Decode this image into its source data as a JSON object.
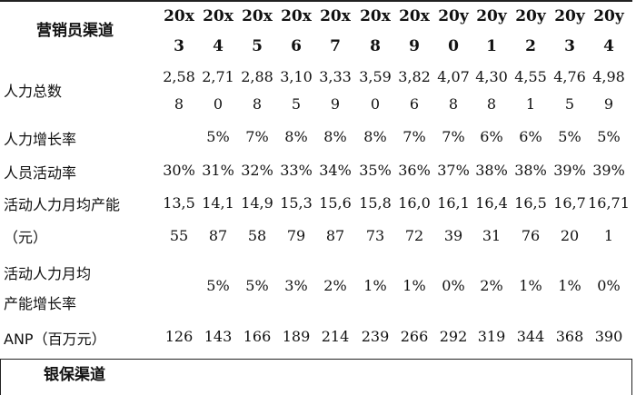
{
  "table": {
    "corner_label": "营销员渠道",
    "years_top": [
      "20x",
      "20x",
      "20x",
      "20x",
      "20x",
      "20x",
      "20x",
      "20y",
      "20y",
      "20y",
      "20y",
      "20y"
    ],
    "years_bottom": [
      "3",
      "4",
      "5",
      "6",
      "7",
      "8",
      "9",
      "0",
      "1",
      "2",
      "3",
      "4"
    ],
    "rows": [
      {
        "label_lines": [
          "人力总数"
        ],
        "top": [
          "2,58",
          "2,71",
          "2,88",
          "3,10",
          "3,33",
          "3,59",
          "3,82",
          "4,07",
          "4,30",
          "4,55",
          "4,76",
          "4,98"
        ],
        "bottom": [
          "8",
          "0",
          "8",
          "5",
          "9",
          "0",
          "6",
          "8",
          "8",
          "1",
          "5",
          "9"
        ]
      },
      {
        "label_lines": [
          "人力增长率"
        ],
        "values": [
          "",
          "5%",
          "7%",
          "8%",
          "8%",
          "8%",
          "7%",
          "7%",
          "6%",
          "6%",
          "5%",
          "5%"
        ]
      },
      {
        "label_lines": [
          "人员活动率"
        ],
        "values": [
          "30%",
          "31%",
          "32%",
          "33%",
          "34%",
          "35%",
          "36%",
          "37%",
          "38%",
          "38%",
          "39%",
          "39%"
        ]
      },
      {
        "label_lines": [
          "活动人力月均产能",
          "（元）"
        ],
        "top": [
          "13,5",
          "14,1",
          "14,9",
          "15,3",
          "15,6",
          "15,8",
          "16,0",
          "16,1",
          "16,4",
          "16,5",
          "16,7",
          "16,71"
        ],
        "bottom": [
          "55",
          "87",
          "58",
          "79",
          "87",
          "73",
          "72",
          "39",
          "31",
          "76",
          "20",
          "1"
        ]
      },
      {
        "label_lines": [
          "活动人力月均",
          "产能增长率"
        ],
        "values": [
          "",
          "5%",
          "5%",
          "3%",
          "2%",
          "1%",
          "1%",
          "0%",
          "2%",
          "1%",
          "1%",
          "0%"
        ]
      },
      {
        "label_lines": [
          "ANP（百万元）"
        ],
        "values": [
          "126",
          "143",
          "166",
          "189",
          "214",
          "239",
          "266",
          "292",
          "319",
          "344",
          "368",
          "390"
        ]
      }
    ],
    "section_label": "银保渠道"
  }
}
